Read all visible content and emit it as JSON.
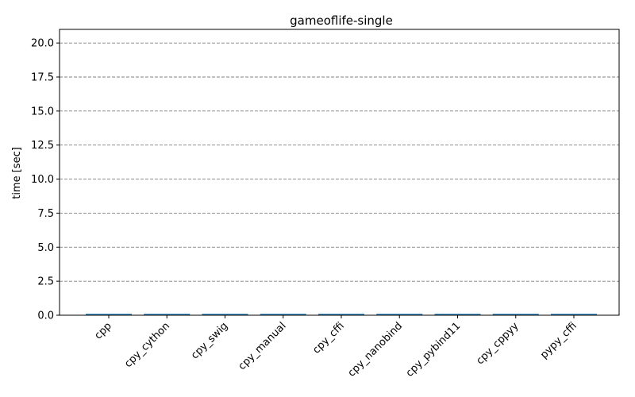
{
  "chart_data": {
    "type": "bar",
    "title": "gameoflife-single",
    "xlabel": "",
    "ylabel": "time [sec]",
    "categories": [
      "cpp",
      "cpy_cython",
      "cpy_swig",
      "cpy_manual",
      "cpy_cffi",
      "cpy_nanobind",
      "cpy_pybind11",
      "cpy_cppyy",
      "pypy_cffi"
    ],
    "values": [
      0.1,
      0.1,
      0.1,
      0.1,
      0.1,
      0.1,
      0.1,
      0.1,
      0.1
    ],
    "ylim": [
      0,
      21
    ],
    "yticks": [
      0.0,
      2.5,
      5.0,
      7.5,
      10.0,
      12.5,
      15.0,
      17.5,
      20.0
    ],
    "ytick_labels": [
      "0.0",
      "2.5",
      "5.0",
      "7.5",
      "10.0",
      "12.5",
      "15.0",
      "17.5",
      "20.0"
    ],
    "grid": "y-dashed",
    "bar_color": "#1f77b4"
  }
}
